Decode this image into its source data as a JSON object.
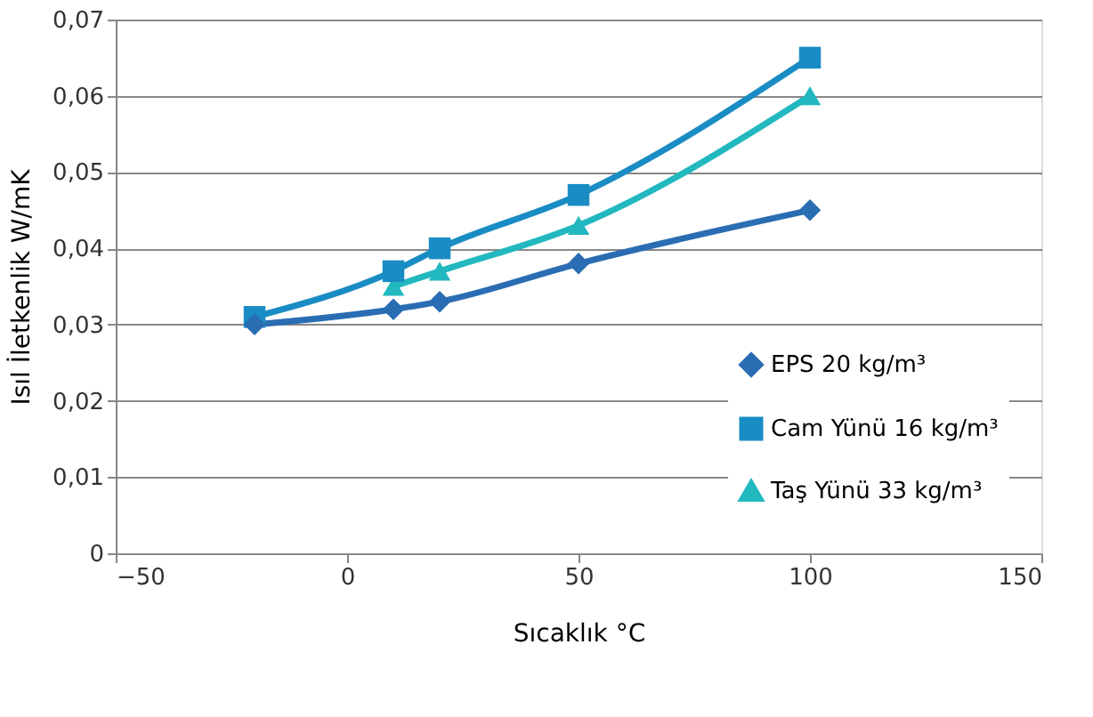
{
  "chart_data": {
    "type": "line",
    "xlabel": "Sıcaklık °C",
    "ylabel": "Isıl İletkenlik W/mK",
    "xlim": [
      -50,
      150
    ],
    "xticks": [
      -50,
      0,
      50,
      100,
      150
    ],
    "ylim": [
      0,
      0.07
    ],
    "yticks": [
      {
        "value": 0,
        "label": "0"
      },
      {
        "value": 0.01,
        "label": "0,01"
      },
      {
        "value": 0.02,
        "label": "0,02"
      },
      {
        "value": 0.03,
        "label": "0,03"
      },
      {
        "value": 0.04,
        "label": "0,04"
      },
      {
        "value": 0.05,
        "label": "0,05"
      },
      {
        "value": 0.06,
        "label": "0,06"
      },
      {
        "value": 0.07,
        "label": "0,07"
      }
    ],
    "grid": "y",
    "legend": "bottom right",
    "line_style": "solid",
    "series": [
      {
        "name": "EPS 20  kg/m³",
        "color": "#2a6db3",
        "marker": "diamond",
        "x": [
          -20,
          10,
          20,
          50,
          100
        ],
        "values": [
          0.03,
          0.032,
          0.033,
          0.038,
          0.045
        ]
      },
      {
        "name": "Cam Yünü 16 kg/m³",
        "color": "#1a8cc4",
        "marker": "square",
        "x": [
          -20,
          10,
          20,
          50,
          100
        ],
        "values": [
          0.031,
          0.037,
          0.04,
          0.047,
          0.065
        ]
      },
      {
        "name": "Taş Yünü  33 kg/m³",
        "color": "#22b8c0",
        "marker": "triangle",
        "x": [
          10,
          20,
          50,
          100
        ],
        "values": [
          0.035,
          0.037,
          0.043,
          0.06
        ]
      }
    ]
  }
}
